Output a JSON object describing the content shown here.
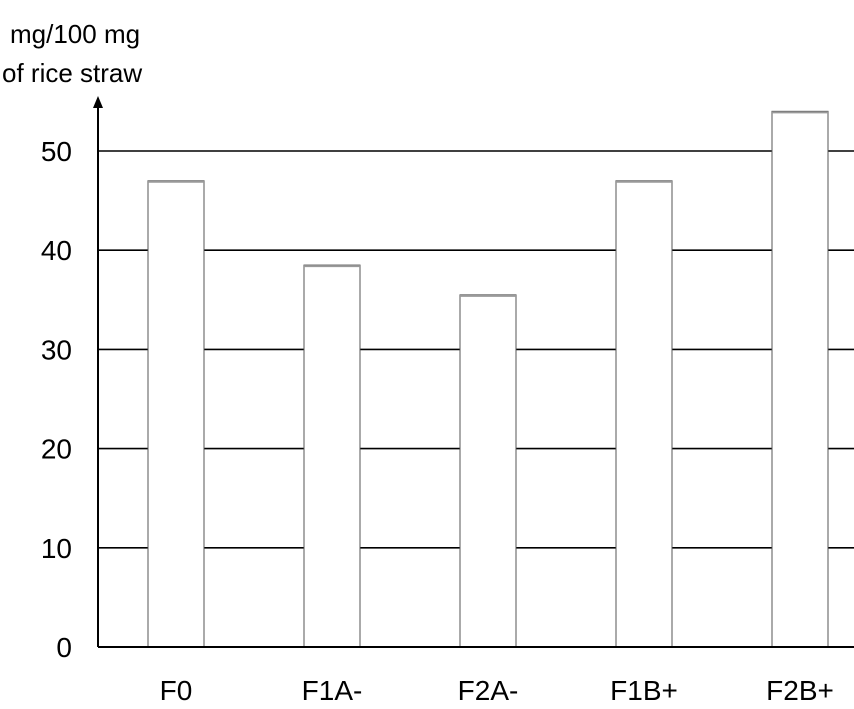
{
  "chart_data": {
    "type": "bar",
    "ylabel_lines": [
      "mg/100 mg",
      "of rice straw"
    ],
    "xlabel": "",
    "categories": [
      "F0",
      "F1A-",
      "F2A-",
      "F1B+",
      "F2B+"
    ],
    "values": [
      47,
      38.5,
      35.5,
      47,
      54
    ],
    "ylim": [
      0,
      50
    ],
    "yticks": [
      0,
      10,
      20,
      30,
      40,
      50
    ],
    "grid": true,
    "colors": {
      "bar_fill": "#ffffff",
      "bar_stroke": "#555555",
      "bar_top": "#999999",
      "gridline": "#000000",
      "axis": "#000000"
    }
  }
}
